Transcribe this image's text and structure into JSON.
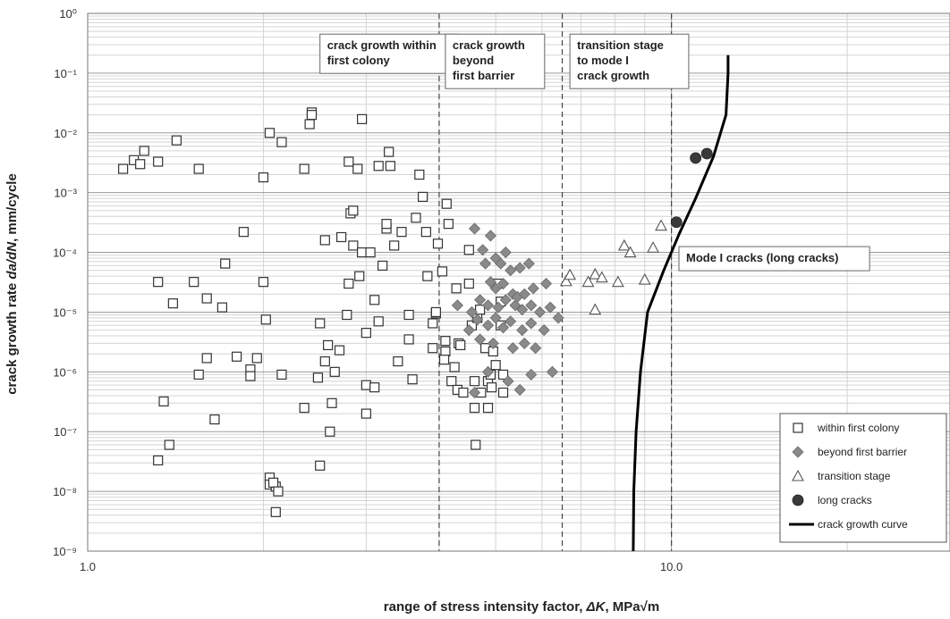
{
  "chart_data": {
    "type": "scatter",
    "xlabel_prefix": "range of stress intensity factor, ",
    "xlabel_symbol": "ΔK",
    "xlabel_units": ", MPa√m",
    "ylabel_prefix": "crack growth rate ",
    "ylabel_symbol": "da/dN",
    "ylabel_units": ", mm/cycle",
    "x_scale": "log",
    "y_scale": "log",
    "xlim": [
      1.0,
      30.0
    ],
    "ylim": [
      1e-09,
      1.0
    ],
    "x_ticks": [
      {
        "value": 1,
        "label": "1.0"
      },
      {
        "value": 10,
        "label": "10.0"
      }
    ],
    "y_ticks": [
      {
        "exp": 0,
        "label": "10⁰"
      },
      {
        "exp": -1,
        "label": "10⁻¹"
      },
      {
        "exp": -2,
        "label": "10⁻²"
      },
      {
        "exp": -3,
        "label": "10⁻³"
      },
      {
        "exp": -4,
        "label": "10⁻⁴"
      },
      {
        "exp": -5,
        "label": "10⁻⁵"
      },
      {
        "exp": -6,
        "label": "10⁻⁶"
      },
      {
        "exp": -7,
        "label": "10⁻⁷"
      },
      {
        "exp": -8,
        "label": "10⁻⁸"
      },
      {
        "exp": -9,
        "label": "10⁻⁹"
      }
    ],
    "grid": true,
    "stage_boundaries": [
      4.0,
      6.5,
      10.0
    ],
    "stage_labels": [
      {
        "lines": [
          "crack growth within",
          "first colony"
        ],
        "x": 2.5,
        "y": 0.45
      },
      {
        "lines": [
          "crack growth",
          "beyond",
          "first barrier"
        ],
        "x": 4.1,
        "y": 0.45
      },
      {
        "lines": [
          "transition stage",
          "to mode I",
          "crack growth"
        ],
        "x": 6.7,
        "y": 0.45
      },
      {
        "lines": [
          "Mode I cracks (long cracks)"
        ],
        "x": 10.3,
        "y": 0.000125
      }
    ],
    "legend": {
      "position": "bottom-right",
      "entries": [
        {
          "label": "within first colony",
          "marker": "square"
        },
        {
          "label": "beyond first barrier",
          "marker": "diamond"
        },
        {
          "label": "transition stage",
          "marker": "triangle"
        },
        {
          "label": "long cracks",
          "marker": "circle"
        },
        {
          "label": "crack growth curve",
          "marker": "line"
        }
      ]
    },
    "series": [
      {
        "name": "within first colony",
        "marker": "square",
        "points": [
          [
            1.15,
            0.0025
          ],
          [
            1.2,
            0.0035
          ],
          [
            1.23,
            0.003
          ],
          [
            1.25,
            0.005
          ],
          [
            1.32,
            0.0033
          ],
          [
            1.42,
            0.0075
          ],
          [
            1.55,
            0.0025
          ],
          [
            1.32,
            3.2e-05
          ],
          [
            1.4,
            1.4e-05
          ],
          [
            1.52,
            3.2e-05
          ],
          [
            1.6,
            1.7e-05
          ],
          [
            1.7,
            1.2e-05
          ],
          [
            1.72,
            6.5e-05
          ],
          [
            1.8,
            1.8e-06
          ],
          [
            1.6,
            1.7e-06
          ],
          [
            1.55,
            9e-07
          ],
          [
            1.9,
            1.1e-06
          ],
          [
            1.9,
            8.5e-07
          ],
          [
            1.95,
            1.7e-06
          ],
          [
            1.35,
            3.2e-07
          ],
          [
            1.38,
            6e-08
          ],
          [
            1.32,
            3.3e-08
          ],
          [
            1.65,
            1.6e-07
          ],
          [
            1.85,
            0.00022
          ],
          [
            2.0,
            0.0018
          ],
          [
            2.0,
            3.2e-05
          ],
          [
            2.05,
            0.01
          ],
          [
            2.15,
            0.007
          ],
          [
            2.02,
            7.5e-06
          ],
          [
            2.15,
            9e-07
          ],
          [
            2.05,
            1.7e-08
          ],
          [
            2.05,
            1.3e-08
          ],
          [
            2.1,
            1.2e-08
          ],
          [
            2.08,
            1.4e-08
          ],
          [
            2.12,
            1e-08
          ],
          [
            2.1,
            4.5e-09
          ],
          [
            2.35,
            0.0025
          ],
          [
            2.4,
            0.014
          ],
          [
            2.42,
            0.022
          ],
          [
            2.42,
            0.02
          ],
          [
            2.55,
            0.00016
          ],
          [
            2.58,
            2.8e-06
          ],
          [
            2.55,
            1.5e-06
          ],
          [
            2.5,
            6.5e-06
          ],
          [
            2.65,
            1e-06
          ],
          [
            2.7,
            2.3e-06
          ],
          [
            2.72,
            0.00018
          ],
          [
            2.78,
            9e-06
          ],
          [
            2.8,
            3e-05
          ],
          [
            2.82,
            0.00045
          ],
          [
            2.85,
            0.00013
          ],
          [
            2.85,
            0.0005
          ],
          [
            2.8,
            0.0033
          ],
          [
            2.9,
            0.0025
          ],
          [
            2.95,
            0.017
          ],
          [
            2.92,
            4e-05
          ],
          [
            2.95,
            0.0001
          ],
          [
            3.0,
            4.5e-06
          ],
          [
            3.05,
            0.0001
          ],
          [
            3.1,
            1.6e-05
          ],
          [
            3.15,
            7e-06
          ],
          [
            3.15,
            0.0028
          ],
          [
            3.2,
            6e-05
          ],
          [
            3.25,
            0.00025
          ],
          [
            3.25,
            0.0003
          ],
          [
            3.28,
            0.0048
          ],
          [
            3.3,
            0.0028
          ],
          [
            3.35,
            0.00013
          ],
          [
            3.4,
            1.5e-06
          ],
          [
            3.45,
            0.00022
          ],
          [
            3.55,
            3.5e-06
          ],
          [
            3.55,
            9e-06
          ],
          [
            3.6,
            7.5e-07
          ],
          [
            3.65,
            0.00038
          ],
          [
            3.7,
            0.002
          ],
          [
            3.75,
            0.00085
          ],
          [
            3.8,
            0.00022
          ],
          [
            3.82,
            4e-05
          ],
          [
            3.9,
            6.5e-06
          ],
          [
            3.95,
            9.5e-06
          ],
          [
            3.95,
            1e-05
          ],
          [
            3.9,
            2.5e-06
          ],
          [
            3.98,
            0.00014
          ],
          [
            4.05,
            4.8e-05
          ],
          [
            4.1,
            3.3e-06
          ],
          [
            4.1,
            2.2e-06
          ],
          [
            4.08,
            1.6e-06
          ],
          [
            4.12,
            0.00065
          ],
          [
            4.15,
            0.0003
          ],
          [
            4.2,
            7e-07
          ],
          [
            4.25,
            1.2e-06
          ],
          [
            4.28,
            2.5e-05
          ],
          [
            4.3,
            5e-07
          ],
          [
            4.32,
            3e-06
          ],
          [
            4.35,
            2.8e-06
          ],
          [
            4.4,
            4.5e-07
          ],
          [
            4.5,
            3e-05
          ],
          [
            4.5,
            0.00011
          ],
          [
            4.55,
            6e-06
          ],
          [
            4.6,
            7e-07
          ],
          [
            4.6,
            2.5e-07
          ],
          [
            4.62,
            6e-08
          ],
          [
            4.65,
            8e-06
          ],
          [
            4.7,
            1.1e-05
          ],
          [
            4.72,
            4.5e-07
          ],
          [
            4.8,
            2.5e-06
          ],
          [
            4.85,
            7e-07
          ],
          [
            4.85,
            2.5e-07
          ],
          [
            4.9,
            9e-07
          ],
          [
            4.92,
            5.5e-07
          ],
          [
            4.95,
            2.2e-06
          ],
          [
            5.0,
            1.3e-06
          ],
          [
            5.05,
            3e-05
          ],
          [
            5.1,
            1.5e-05
          ],
          [
            5.1,
            6e-06
          ],
          [
            5.15,
            9e-07
          ],
          [
            5.15,
            4.5e-07
          ],
          [
            3.0,
            6e-07
          ],
          [
            3.1,
            5.5e-07
          ],
          [
            3.0,
            2e-07
          ],
          [
            2.62,
            3e-07
          ],
          [
            2.6,
            1e-07
          ],
          [
            2.5,
            2.7e-08
          ],
          [
            2.35,
            2.5e-07
          ],
          [
            2.48,
            8e-07
          ]
        ]
      },
      {
        "name": "beyond first barrier",
        "marker": "diamond",
        "points": [
          [
            4.6,
            0.00025
          ],
          [
            4.9,
            0.00019
          ],
          [
            4.75,
            0.00011
          ],
          [
            5.0,
            8e-05
          ],
          [
            4.8,
            6.5e-05
          ],
          [
            5.2,
            0.0001
          ],
          [
            5.1,
            6.5e-05
          ],
          [
            5.3,
            5e-05
          ],
          [
            5.5,
            5.5e-05
          ],
          [
            5.7,
            6.5e-05
          ],
          [
            4.9,
            3.2e-05
          ],
          [
            5.0,
            2.5e-05
          ],
          [
            5.15,
            3e-05
          ],
          [
            5.35,
            2e-05
          ],
          [
            5.45,
            1.8e-05
          ],
          [
            5.6,
            2e-05
          ],
          [
            5.8,
            2.5e-05
          ],
          [
            6.1,
            3e-05
          ],
          [
            4.3,
            1.3e-05
          ],
          [
            4.55,
            1e-05
          ],
          [
            4.7,
            1.6e-05
          ],
          [
            4.85,
            1.3e-05
          ],
          [
            5.05,
            1.2e-05
          ],
          [
            5.2,
            1.6e-05
          ],
          [
            5.4,
            1.3e-05
          ],
          [
            5.55,
            1.1e-05
          ],
          [
            5.75,
            1.3e-05
          ],
          [
            5.95,
            1e-05
          ],
          [
            6.2,
            1.2e-05
          ],
          [
            4.5,
            5e-06
          ],
          [
            4.65,
            7.5e-06
          ],
          [
            4.85,
            6e-06
          ],
          [
            5.0,
            8e-06
          ],
          [
            5.15,
            5.5e-06
          ],
          [
            5.3,
            7e-06
          ],
          [
            5.55,
            5e-06
          ],
          [
            5.75,
            6.5e-06
          ],
          [
            6.05,
            5e-06
          ],
          [
            4.7,
            3.5e-06
          ],
          [
            4.95,
            3e-06
          ],
          [
            5.35,
            2.5e-06
          ],
          [
            5.6,
            3e-06
          ],
          [
            5.85,
            2.5e-06
          ],
          [
            4.85,
            1e-06
          ],
          [
            5.25,
            7e-07
          ],
          [
            5.5,
            5e-07
          ],
          [
            5.75,
            9e-07
          ],
          [
            6.25,
            1e-06
          ],
          [
            4.6,
            4.5e-07
          ],
          [
            6.4,
            8e-06
          ]
        ]
      },
      {
        "name": "transition stage",
        "marker": "triangle",
        "points": [
          [
            6.6,
            3.3e-05
          ],
          [
            6.7,
            4.2e-05
          ],
          [
            7.2,
            3.2e-05
          ],
          [
            7.4,
            4.3e-05
          ],
          [
            7.6,
            3.8e-05
          ],
          [
            7.4,
            1.1e-05
          ],
          [
            8.1,
            3.2e-05
          ],
          [
            8.3,
            0.00013
          ],
          [
            8.5,
            0.0001
          ],
          [
            9.0,
            3.5e-05
          ],
          [
            9.3,
            0.00012
          ],
          [
            9.6,
            0.00028
          ]
        ]
      },
      {
        "name": "long cracks",
        "marker": "circle",
        "points": [
          [
            10.2,
            0.00032
          ],
          [
            11.0,
            0.0038
          ],
          [
            11.5,
            0.0045
          ]
        ]
      },
      {
        "name": "crack growth curve",
        "marker": "line",
        "points": [
          [
            8.6,
            1e-09
          ],
          [
            8.62,
            1e-08
          ],
          [
            8.7,
            1e-07
          ],
          [
            8.85,
            1e-06
          ],
          [
            9.1,
            1e-05
          ],
          [
            9.7,
            5e-05
          ],
          [
            10.3,
            0.0002
          ],
          [
            11.0,
            0.0008
          ],
          [
            11.8,
            0.004
          ],
          [
            12.4,
            0.02
          ],
          [
            12.5,
            0.1
          ],
          [
            12.5,
            0.2
          ]
        ]
      }
    ]
  }
}
